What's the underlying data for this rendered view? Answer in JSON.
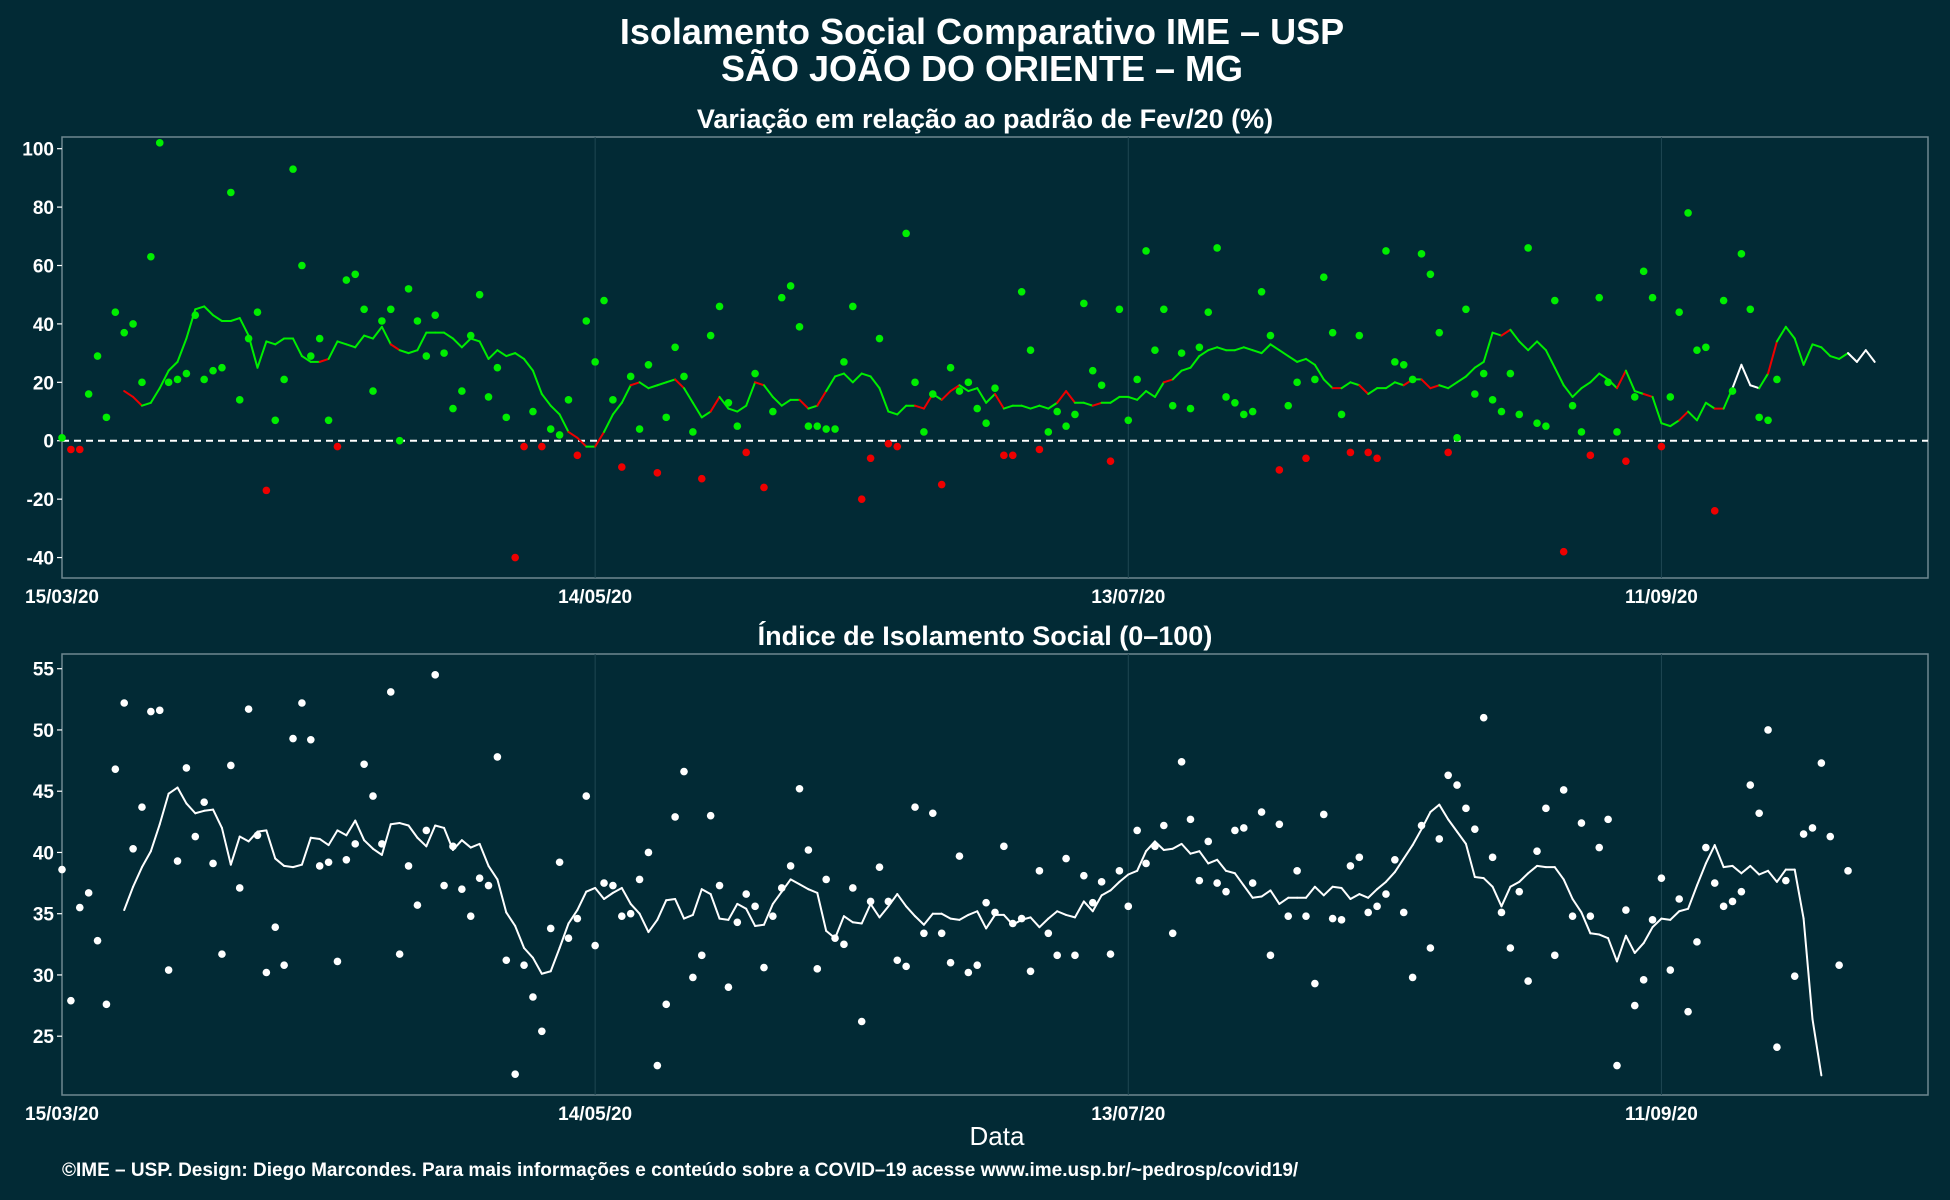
{
  "page": {
    "title_line1": "Isolamento Social Comparativo IME – USP",
    "title_line2": "SÃO JOÃO DO ORIENTE – MG",
    "credit": "©IME – USP. Design: Diego Marcondes. Para mais informações e conteúdo sobre a COVID–19 acesse www.ime.usp.br/~pedrosp/covid19/",
    "xlabel": "Data",
    "colors": {
      "background": "#022a35",
      "panel_border": "#6e8890",
      "grid": "#1f4652",
      "positive": "#00ee00",
      "negative": "#ee0000",
      "neutral": "#ffffff"
    }
  },
  "chart_data": [
    {
      "type": "line",
      "title": "Variação em relação ao padrão de Fev/20 (%)",
      "xlabel": "",
      "ylabel": "",
      "x_start": "2020-03-15",
      "x_end": "2020-10-11",
      "x_ticks": [
        "15/03/20",
        "14/05/20",
        "13/07/20",
        "11/09/20"
      ],
      "y_ticks": [
        100,
        80,
        60,
        40,
        20,
        0,
        -20,
        -40
      ],
      "ylim": [
        -47,
        104
      ],
      "reference_line": 0,
      "grid": true,
      "series": [
        {
          "role": "daily points",
          "values": [
            1,
            -3,
            -3,
            16,
            29,
            8,
            44,
            37,
            40,
            20,
            63,
            102,
            20,
            21,
            23,
            43,
            21,
            24,
            25,
            85,
            14,
            35,
            44,
            -17,
            7,
            21,
            93,
            60,
            29,
            35,
            7,
            -2,
            55,
            57,
            45,
            17,
            41,
            45,
            0,
            52,
            41,
            29,
            43,
            30,
            11,
            17,
            36,
            50,
            15,
            25,
            8,
            -40,
            -2,
            10,
            -2,
            4,
            2,
            14,
            -5,
            41,
            27,
            48,
            14,
            -9,
            22,
            4,
            26,
            -11,
            8,
            32,
            22,
            3,
            -13,
            36,
            46,
            13,
            5,
            -4,
            23,
            -16,
            10,
            49,
            53,
            39,
            5,
            5,
            4,
            4,
            27,
            46,
            -20,
            -6,
            35,
            -1,
            -2,
            71,
            20,
            3,
            16,
            -15,
            25,
            17,
            20,
            11,
            6,
            18,
            -5,
            -5,
            51,
            31,
            -3,
            3,
            10,
            5,
            9,
            47,
            24,
            19,
            -7,
            45,
            7,
            21,
            65,
            31,
            45,
            12,
            30,
            11,
            32,
            44,
            66,
            15,
            13,
            9,
            10,
            51,
            36,
            -10,
            12,
            20,
            -6,
            21,
            56,
            37,
            9,
            -4,
            36,
            -4,
            -6,
            65,
            27,
            26,
            21,
            64,
            57,
            37,
            -4,
            1,
            45,
            16,
            23,
            14,
            10,
            23,
            9,
            66,
            6,
            5,
            48,
            -38,
            12,
            3,
            -5,
            49,
            20,
            3,
            -7,
            15,
            58,
            49,
            -2,
            15,
            44,
            78,
            31,
            32,
            -24,
            48,
            17,
            64,
            45,
            8,
            7,
            21
          ]
        },
        {
          "role": "moving average",
          "values": [
            17,
            15,
            12,
            13,
            18,
            24,
            27,
            35,
            45,
            46,
            43,
            41,
            41,
            42,
            36,
            25,
            34,
            33,
            35,
            35,
            29,
            27,
            27,
            28,
            34,
            33,
            32,
            36,
            35,
            39,
            33,
            31,
            30,
            31,
            37,
            37,
            37,
            35,
            32,
            35,
            34,
            28,
            31,
            29,
            30,
            28,
            24,
            16,
            12,
            9,
            3,
            1,
            -2,
            -2,
            3,
            9,
            13,
            19,
            20,
            18,
            19,
            20,
            21,
            18,
            13,
            8,
            10,
            15,
            11,
            10,
            12,
            20,
            19,
            15,
            12,
            14,
            14,
            11,
            12,
            17,
            22,
            23,
            20,
            23,
            22,
            18,
            10,
            9,
            12,
            12,
            11,
            16,
            14,
            17,
            19,
            17,
            18,
            13,
            16,
            11,
            12,
            12,
            11,
            12,
            11,
            13,
            17,
            13,
            13,
            12,
            13,
            13,
            15,
            15,
            14,
            17,
            15,
            20,
            21,
            24,
            25,
            29,
            31,
            32,
            31,
            31,
            32,
            31,
            30,
            33,
            31,
            29,
            27,
            28,
            26,
            21,
            18,
            18,
            20,
            19,
            16,
            18,
            18,
            20,
            19,
            21,
            21,
            18,
            19,
            18,
            20,
            22,
            25,
            27,
            37,
            36,
            38,
            34,
            31,
            34,
            31,
            25,
            19,
            15,
            18,
            20,
            23,
            21,
            18,
            24,
            17,
            16,
            15,
            6,
            5,
            7,
            10,
            7,
            13,
            11,
            11,
            18,
            26,
            19,
            18,
            23,
            34,
            39,
            35,
            26,
            33,
            32,
            29,
            28,
            30,
            27,
            31,
            27
          ]
        }
      ]
    },
    {
      "type": "line",
      "title": "Índice de Isolamento Social (0–100)",
      "xlabel": "Data",
      "ylabel": "",
      "x_start": "2020-03-15",
      "x_end": "2020-10-11",
      "x_ticks": [
        "15/03/20",
        "14/05/20",
        "13/07/20",
        "11/09/20"
      ],
      "y_ticks": [
        55,
        50,
        45,
        40,
        35,
        30,
        25
      ],
      "ylim": [
        20.2,
        56.2
      ],
      "grid": true,
      "series": [
        {
          "role": "daily points",
          "values": [
            38.6,
            27.9,
            35.5,
            36.7,
            32.8,
            27.6,
            46.8,
            52.2,
            40.3,
            43.7,
            51.5,
            51.6,
            30.4,
            39.3,
            46.9,
            41.3,
            44.1,
            39.1,
            31.7,
            47.1,
            37.1,
            51.7,
            41.4,
            30.2,
            33.9,
            30.8,
            49.3,
            52.2,
            49.2,
            38.9,
            39.2,
            31.1,
            39.4,
            40.7,
            47.2,
            44.6,
            40.7,
            53.1,
            31.7,
            38.9,
            35.7,
            41.8,
            54.5,
            37.3,
            40.5,
            37.0,
            34.8,
            37.9,
            37.3,
            47.8,
            31.2,
            21.9,
            30.8,
            28.2,
            25.4,
            33.8,
            39.2,
            33.0,
            34.6,
            44.6,
            32.4,
            37.5,
            37.3,
            34.8,
            35.0,
            37.8,
            40.0,
            22.6,
            27.6,
            42.9,
            46.6,
            29.8,
            31.6,
            43.0,
            37.3,
            29.0,
            34.3,
            36.6,
            35.6,
            30.6,
            34.8,
            37.1,
            38.9,
            45.2,
            40.2,
            30.5,
            37.8,
            33.0,
            32.5,
            37.1,
            26.2,
            36.0,
            38.8,
            36.0,
            31.2,
            30.7,
            43.7,
            33.4,
            43.2,
            33.4,
            31.0,
            39.7,
            30.2,
            30.8,
            35.9,
            35.1,
            40.5,
            34.2,
            34.6,
            30.3,
            38.5,
            33.4,
            31.6,
            39.5,
            31.6,
            38.1,
            35.9,
            37.6,
            31.7,
            38.5,
            35.6,
            41.8,
            39.1,
            40.5,
            42.2,
            33.4,
            47.4,
            42.7,
            37.7,
            40.9,
            37.5,
            36.8,
            41.8,
            42.0,
            37.5,
            43.3,
            31.6,
            42.3,
            34.8,
            38.5,
            34.8,
            29.3,
            43.1,
            34.6,
            34.5,
            38.9,
            39.6,
            35.1,
            35.6,
            36.6,
            39.4,
            35.1,
            29.8,
            42.2,
            32.2,
            41.1,
            46.3,
            45.5,
            43.6,
            41.9,
            51.0,
            39.6,
            35.1,
            32.2,
            36.8,
            29.5,
            40.1,
            43.6,
            31.6,
            45.1,
            34.8,
            42.4,
            34.8,
            40.4,
            42.7,
            22.6,
            35.3,
            27.5,
            29.6,
            34.5,
            37.9,
            30.4,
            36.2,
            27.0,
            32.7,
            40.4,
            37.5,
            35.6,
            36.0,
            36.8,
            45.5,
            43.2,
            50.0,
            24.1,
            37.7,
            29.9,
            41.5,
            42.0,
            47.3,
            41.3,
            30.8,
            38.5
          ]
        },
        {
          "role": "moving average",
          "values": [
            35.3,
            37.2,
            38.8,
            40.1,
            42.3,
            44.8,
            45.3,
            44.0,
            43.2,
            43.4,
            43.5,
            42.0,
            39.0,
            41.3,
            40.9,
            41.7,
            41.8,
            39.5,
            38.9,
            38.8,
            39.0,
            41.2,
            41.1,
            40.6,
            41.8,
            41.4,
            42.6,
            41.0,
            40.3,
            39.8,
            42.3,
            42.4,
            42.2,
            41.2,
            40.5,
            42.2,
            42.0,
            40.2,
            41.0,
            40.4,
            40.7,
            38.9,
            37.8,
            35.1,
            34.0,
            32.2,
            31.4,
            30.1,
            30.3,
            32.2,
            34.2,
            35.3,
            36.8,
            37.1,
            36.2,
            36.7,
            37.1,
            35.8,
            35.0,
            33.5,
            34.5,
            36.1,
            36.2,
            34.6,
            34.9,
            37.0,
            36.6,
            34.6,
            34.5,
            35.8,
            35.4,
            34.0,
            34.1,
            35.8,
            36.8,
            37.8,
            37.4,
            37.0,
            36.7,
            33.6,
            33.0,
            34.8,
            34.3,
            34.2,
            35.8,
            34.7,
            35.6,
            36.6,
            35.6,
            34.8,
            34.1,
            35.0,
            35.0,
            34.6,
            34.5,
            34.9,
            35.2,
            33.8,
            34.9,
            34.9,
            34.1,
            34.5,
            34.7,
            33.9,
            34.6,
            35.2,
            34.9,
            34.7,
            36.0,
            35.2,
            36.5,
            36.9,
            37.6,
            38.2,
            38.5,
            40.1,
            40.9,
            40.2,
            40.3,
            40.7,
            39.9,
            40.1,
            39.1,
            39.4,
            38.5,
            38.3,
            37.3,
            36.3,
            36.4,
            36.9,
            35.8,
            36.3,
            36.3,
            36.3,
            37.2,
            36.5,
            37.2,
            37.1,
            36.2,
            36.6,
            36.3,
            37.0,
            37.6,
            38.4,
            39.5,
            40.6,
            41.9,
            43.3,
            43.9,
            42.7,
            41.7,
            40.7,
            38.0,
            37.9,
            37.2,
            35.6,
            37.2,
            37.6,
            38.3,
            38.9,
            38.8,
            38.8,
            37.8,
            36.2,
            35.1,
            33.4,
            33.3,
            33.0,
            31.1,
            33.2,
            31.8,
            32.6,
            33.9,
            34.6,
            34.5,
            35.2,
            35.4,
            37.3,
            39.1,
            40.6,
            38.8,
            38.9,
            38.3,
            38.9,
            38.2,
            38.5,
            37.6,
            38.6,
            38.6,
            34.6,
            26.4,
            21.8
          ]
        }
      ]
    }
  ]
}
